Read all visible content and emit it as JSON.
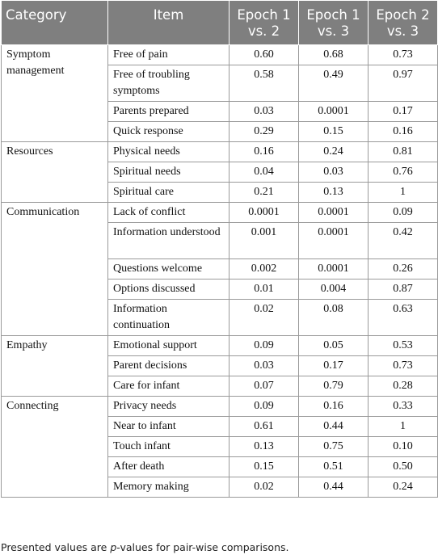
{
  "header": {
    "category": "Category",
    "item": "Item",
    "epoch12": "Epoch 1 vs. 2",
    "epoch13": "Epoch 1 vs. 3",
    "epoch23": "Epoch 2 vs. 3"
  },
  "groups": [
    {
      "category": "Symptom management",
      "rows": [
        {
          "item": "Free of pain",
          "e12": "0.60",
          "e13": "0.68",
          "e23": "0.73"
        },
        {
          "item": "Free of troubling symptoms",
          "e12": "0.58",
          "e13": "0.49",
          "e23": "0.97"
        },
        {
          "item": "Parents prepared",
          "e12": "0.03",
          "e13": "0.0001",
          "e23": "0.17"
        },
        {
          "item": "Quick response",
          "e12": "0.29",
          "e13": "0.15",
          "e23": "0.16"
        }
      ]
    },
    {
      "category": "Resources",
      "rows": [
        {
          "item": "Physical needs",
          "e12": "0.16",
          "e13": "0.24",
          "e23": "0.81"
        },
        {
          "item": "Spiritual needs",
          "e12": "0.04",
          "e13": "0.03",
          "e23": "0.76"
        },
        {
          "item": "Spiritual care",
          "e12": "0.21",
          "e13": "0.13",
          "e23": "1"
        }
      ]
    },
    {
      "category": "Communication",
      "rows": [
        {
          "item": "Lack of conflict",
          "e12": "0.0001",
          "e13": "0.0001",
          "e23": "0.09"
        },
        {
          "item": "Information understood",
          "e12": "0.001",
          "e13": "0.0001",
          "e23": "0.42"
        },
        {
          "item": "Questions welcome",
          "e12": "0.002",
          "e13": "0.0001",
          "e23": "0.26"
        },
        {
          "item": "Options discussed",
          "e12": "0.01",
          "e13": "0.004",
          "e23": "0.87"
        },
        {
          "item": "Information continuation",
          "e12": "0.02",
          "e13": "0.08",
          "e23": "0.63"
        }
      ]
    },
    {
      "category": "Empathy",
      "rows": [
        {
          "item": "Emotional support",
          "e12": "0.09",
          "e13": "0.05",
          "e23": "0.53"
        },
        {
          "item": "Parent decisions",
          "e12": "0.03",
          "e13": "0.17",
          "e23": "0.73"
        },
        {
          "item": "Care for infant",
          "e12": "0.07",
          "e13": "0.79",
          "e23": "0.28"
        }
      ]
    },
    {
      "category": "Connecting",
      "rows": [
        {
          "item": "Privacy needs",
          "e12": "0.09",
          "e13": "0.16",
          "e23": "0.33"
        },
        {
          "item": "Near to infant",
          "e12": "0.61",
          "e13": "0.44",
          "e23": "1"
        },
        {
          "item": "Touch infant",
          "e12": "0.13",
          "e13": "0.75",
          "e23": "0.10"
        },
        {
          "item": "After death",
          "e12": "0.15",
          "e13": "0.51",
          "e23": "0.50"
        },
        {
          "item": "Memory making",
          "e12": "0.02",
          "e13": "0.44",
          "e23": "0.24"
        }
      ]
    }
  ],
  "footnote": {
    "prefix": "Presented values are ",
    "italic": "p",
    "suffix": "-values for pair-wise comparisons."
  }
}
